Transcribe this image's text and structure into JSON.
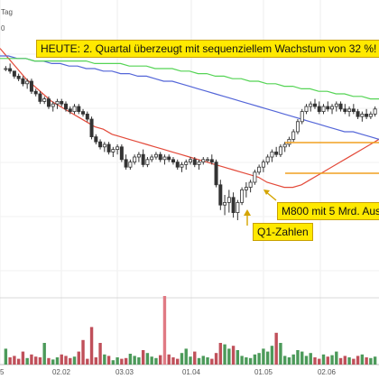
{
  "header": {
    "period_label": "Tag",
    "scale_label": "0"
  },
  "colors": {
    "ma_red": "#e34a3a",
    "ma_blue": "#5466d8",
    "ma_green": "#55d455",
    "candle": "#333333",
    "volume_up": "#4c9a5a",
    "volume_down": "#c0505a",
    "volume_peak": "#e07a84",
    "annotation_bg": "#ffe900",
    "arrow": "#d4a400"
  },
  "annotations": {
    "headline": "HEUTE: 2. Quartal überzeugt mit sequenziellem Wachstum von 32 %!",
    "q1": "Q1-Zahlen",
    "m800": "M800 mit 5 Mrd. Aus"
  },
  "chart_data": {
    "type": "candlestick",
    "xlabel": "",
    "ylabel": "",
    "date_ticks": [
      "5",
      "02.02",
      "03.03",
      "01.04",
      "01.05",
      "02.06"
    ],
    "grid": true,
    "legend": "none",
    "note": "Price axis not labeled in the visible crop; values estimated on a 0–100 relative scale (higher = higher price). Volumes on a 0–100 relative scale.",
    "candles": [
      [
        80,
        81,
        79,
        80
      ],
      [
        80,
        82,
        78,
        79
      ],
      [
        79,
        79,
        76,
        77
      ],
      [
        77,
        78,
        75,
        76
      ],
      [
        76,
        77,
        73,
        74
      ],
      [
        74,
        76,
        72,
        75
      ],
      [
        75,
        76,
        70,
        71
      ],
      [
        71,
        72,
        69,
        70
      ],
      [
        70,
        71,
        66,
        67
      ],
      [
        67,
        69,
        66,
        68
      ],
      [
        68,
        69,
        64,
        65
      ],
      [
        65,
        67,
        63,
        66
      ],
      [
        66,
        68,
        64,
        67
      ],
      [
        67,
        68,
        65,
        66
      ],
      [
        66,
        67,
        63,
        64
      ],
      [
        64,
        65,
        62,
        63
      ],
      [
        63,
        66,
        62,
        65
      ],
      [
        65,
        66,
        62,
        63
      ],
      [
        63,
        64,
        61,
        62
      ],
      [
        62,
        63,
        59,
        60
      ],
      [
        60,
        61,
        52,
        53
      ],
      [
        53,
        54,
        50,
        51
      ],
      [
        51,
        52,
        48,
        49
      ],
      [
        49,
        51,
        47,
        50
      ],
      [
        50,
        51,
        46,
        47
      ],
      [
        47,
        49,
        45,
        48
      ],
      [
        48,
        50,
        46,
        49
      ],
      [
        49,
        50,
        43,
        44
      ],
      [
        44,
        46,
        40,
        41
      ],
      [
        41,
        44,
        40,
        43
      ],
      [
        43,
        46,
        42,
        45
      ],
      [
        45,
        47,
        43,
        46
      ],
      [
        46,
        48,
        41,
        42
      ],
      [
        42,
        45,
        41,
        44
      ],
      [
        44,
        46,
        43,
        45
      ],
      [
        45,
        47,
        44,
        46
      ],
      [
        46,
        47,
        43,
        44
      ],
      [
        44,
        46,
        42,
        45
      ],
      [
        45,
        46,
        43,
        44
      ],
      [
        44,
        45,
        42,
        43
      ],
      [
        43,
        44,
        40,
        41
      ],
      [
        41,
        43,
        39,
        42
      ],
      [
        42,
        44,
        40,
        43
      ],
      [
        43,
        45,
        42,
        44
      ],
      [
        44,
        45,
        41,
        42
      ],
      [
        42,
        44,
        40,
        43
      ],
      [
        43,
        45,
        42,
        44
      ],
      [
        44,
        45,
        43,
        44
      ],
      [
        44,
        46,
        42,
        43
      ],
      [
        43,
        44,
        33,
        34
      ],
      [
        34,
        36,
        24,
        26
      ],
      [
        26,
        30,
        22,
        27
      ],
      [
        27,
        32,
        23,
        29
      ],
      [
        29,
        31,
        21,
        23
      ],
      [
        23,
        28,
        20,
        27
      ],
      [
        27,
        33,
        26,
        32
      ],
      [
        32,
        35,
        29,
        33
      ],
      [
        33,
        36,
        31,
        35
      ],
      [
        35,
        40,
        34,
        39
      ],
      [
        39,
        42,
        38,
        41
      ],
      [
        41,
        44,
        39,
        43
      ],
      [
        43,
        46,
        42,
        45
      ],
      [
        45,
        48,
        43,
        47
      ],
      [
        47,
        49,
        45,
        46
      ],
      [
        46,
        50,
        45,
        49
      ],
      [
        49,
        51,
        47,
        50
      ],
      [
        50,
        53,
        49,
        52
      ],
      [
        52,
        56,
        51,
        55
      ],
      [
        55,
        60,
        54,
        59
      ],
      [
        59,
        64,
        58,
        63
      ],
      [
        63,
        66,
        62,
        65
      ],
      [
        65,
        67,
        63,
        66
      ],
      [
        66,
        68,
        64,
        65
      ],
      [
        65,
        67,
        62,
        63
      ],
      [
        63,
        66,
        62,
        65
      ],
      [
        65,
        67,
        63,
        64
      ],
      [
        64,
        66,
        62,
        65
      ],
      [
        65,
        67,
        63,
        66
      ],
      [
        66,
        67,
        63,
        64
      ],
      [
        64,
        66,
        62,
        63
      ],
      [
        63,
        65,
        61,
        64
      ],
      [
        64,
        66,
        62,
        63
      ],
      [
        63,
        64,
        60,
        61
      ],
      [
        61,
        63,
        59,
        62
      ],
      [
        62,
        64,
        60,
        61
      ],
      [
        61,
        63,
        60,
        62
      ],
      [
        62,
        65,
        61,
        64
      ]
    ],
    "volume": [
      22,
      10,
      12,
      8,
      18,
      9,
      14,
      11,
      10,
      30,
      9,
      7,
      10,
      14,
      12,
      9,
      11,
      18,
      34,
      8,
      52,
      10,
      30,
      14,
      12,
      6,
      10,
      8,
      9,
      15,
      12,
      10,
      20,
      16,
      11,
      9,
      13,
      95,
      14,
      10,
      8,
      16,
      22,
      11,
      18,
      9,
      12,
      10,
      8,
      16,
      30,
      28,
      22,
      26,
      20,
      12,
      10,
      9,
      14,
      16,
      22,
      18,
      26,
      44,
      30,
      12,
      10,
      14,
      20,
      18,
      12,
      16,
      10,
      8,
      14,
      11,
      13,
      18,
      9,
      12,
      10,
      8,
      12,
      14,
      10,
      9,
      11
    ],
    "series": [
      {
        "name": "",
        "color": "#e34a3a",
        "values": [
          88,
          84,
          80,
          76,
          73,
          70,
          67,
          65,
          63,
          61,
          59,
          57,
          56,
          54,
          53,
          52,
          51,
          50,
          49,
          48,
          47,
          46,
          45,
          44,
          43,
          42,
          41,
          40,
          39,
          38,
          37,
          35,
          34,
          33,
          33,
          34,
          36,
          38,
          40,
          42,
          44,
          46,
          48,
          50,
          52
        ]
      },
      {
        "name": "",
        "color": "#5466d8",
        "values": [
          85,
          85,
          84,
          84,
          83,
          83,
          82,
          82,
          81,
          81,
          80,
          80,
          79,
          79,
          78,
          78,
          77,
          77,
          76,
          75,
          75,
          74,
          73,
          72,
          71,
          70,
          69,
          68,
          67,
          66,
          65,
          64,
          63,
          62,
          61,
          60,
          59,
          58,
          57,
          56,
          55,
          55,
          54,
          53,
          52
        ]
      },
      {
        "name": "",
        "color": "#55d455",
        "values": [
          84,
          84,
          84,
          84,
          83,
          83,
          83,
          83,
          83,
          83,
          83,
          82,
          82,
          82,
          82,
          81,
          81,
          81,
          80,
          80,
          80,
          79,
          79,
          78,
          78,
          77,
          77,
          76,
          76,
          75,
          75,
          74,
          74,
          73,
          73,
          72,
          72,
          71,
          71,
          70,
          70,
          69,
          69,
          68,
          68
        ]
      }
    ]
  }
}
